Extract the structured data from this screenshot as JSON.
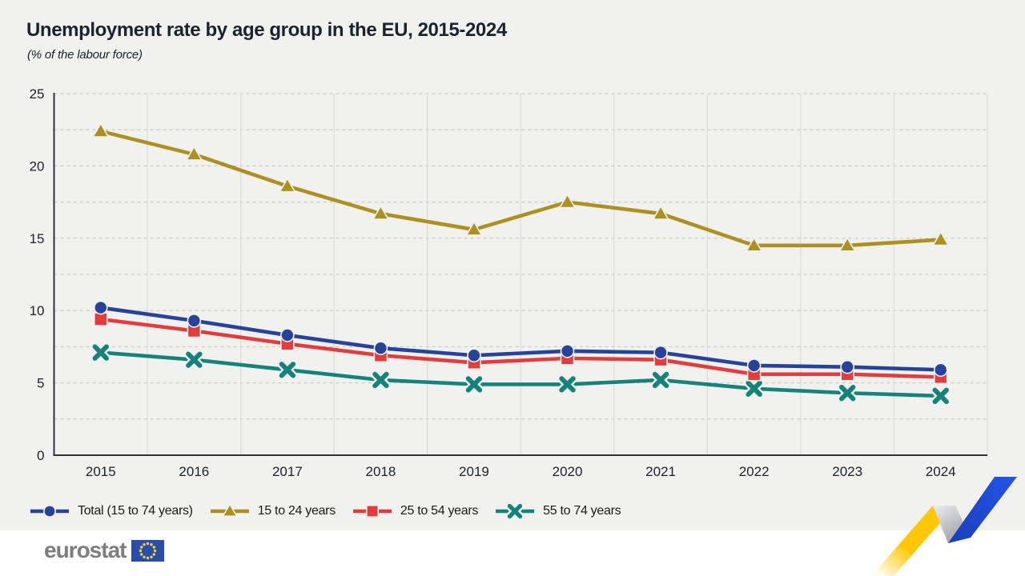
{
  "title": "Unemployment rate by age group in the EU, 2015-2024",
  "subtitle": "(% of the labour force)",
  "chart_data": {
    "type": "line",
    "x": [
      2015,
      2016,
      2017,
      2018,
      2019,
      2020,
      2021,
      2022,
      2023,
      2024
    ],
    "series": [
      {
        "name": "Total (15 to 74 years)",
        "marker": "circle",
        "color": "#27429B",
        "values": [
          10.2,
          9.3,
          8.3,
          7.4,
          6.9,
          7.2,
          7.1,
          6.2,
          6.1,
          5.9
        ]
      },
      {
        "name": "15 to 24 years",
        "marker": "triangle",
        "color": "#AD9022",
        "values": [
          22.4,
          20.8,
          18.6,
          16.7,
          15.6,
          17.5,
          16.7,
          14.5,
          14.5,
          14.9
        ]
      },
      {
        "name": "25 to 54 years",
        "marker": "square",
        "color": "#E23C3C",
        "values": [
          9.4,
          8.6,
          7.7,
          6.9,
          6.4,
          6.7,
          6.6,
          5.6,
          5.6,
          5.4
        ]
      },
      {
        "name": "55 to 74 years",
        "marker": "x",
        "color": "#16837A",
        "values": [
          7.1,
          6.6,
          5.9,
          5.2,
          4.9,
          4.9,
          5.2,
          4.6,
          4.3,
          4.1
        ]
      }
    ],
    "ylim": [
      0,
      25
    ],
    "yticks": [
      0,
      5,
      10,
      15,
      20,
      25
    ],
    "grid_minor_step": 2.5,
    "grid": "horizontal dashed every 2.5, vertical solid at category boundaries",
    "legend_position": "bottom-left",
    "xlabel": "",
    "ylabel": ""
  },
  "footer": {
    "logo_text": "eurostat"
  },
  "colors": {
    "page_bg": "#F1F1EF",
    "title_text": "#1B2330",
    "axis": "#30333C",
    "axis_text": "#1E2127",
    "grid_dashed": "#C7C7C7",
    "grid_vertical": "#DCDCDC",
    "logo_gray": "#7D7D7D",
    "flag_blue": "#2A4DA8",
    "star_yellow": "#F8D12E",
    "ribbon_yellow": "#FFC708",
    "ribbon_gray_light": "#E8E8EA",
    "ribbon_gray_dark": "#94969B",
    "ribbon_blue_dark": "#1A3EB8",
    "ribbon_blue": "#2353E6"
  }
}
